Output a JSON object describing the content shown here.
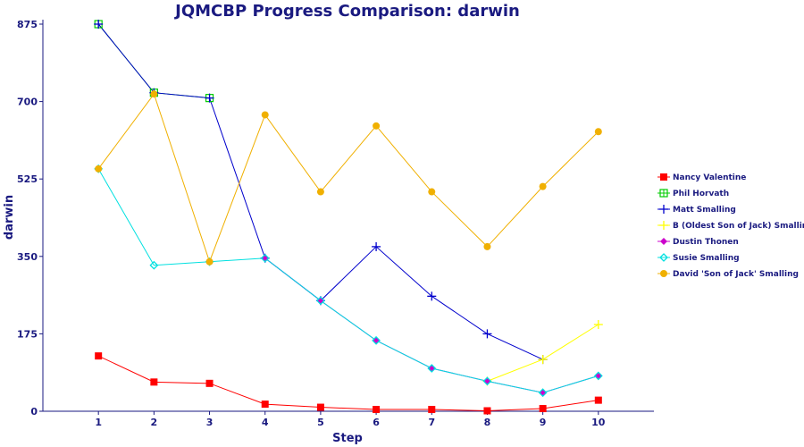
{
  "chart_data": {
    "type": "line",
    "title": "JQMCBP Progress Comparison: darwin",
    "xlabel": "Step",
    "ylabel": "darwin",
    "x": [
      1,
      2,
      3,
      4,
      5,
      6,
      7,
      8,
      9,
      10
    ],
    "x_ticks": [
      "1",
      "2",
      "3",
      "4",
      "5",
      "6",
      "7",
      "8",
      "9",
      "10"
    ],
    "xlim": [
      0,
      11
    ],
    "ylim": [
      0,
      875
    ],
    "y_ticks": [
      0,
      175,
      350,
      525,
      700,
      875
    ],
    "y_tick_labels": [
      "0",
      "175",
      "350",
      "525",
      "700",
      "875"
    ],
    "grid": false,
    "legend": "right",
    "series": [
      {
        "name": "Nancy Valentine",
        "color": "#ff0000",
        "marker": "filled-square",
        "values": [
          125,
          66,
          63,
          16,
          9,
          4,
          4,
          1,
          6,
          25
        ]
      },
      {
        "name": "Phil Horvath",
        "color": "#00cc00",
        "marker": "open-square",
        "values": [
          875,
          720,
          708,
          null,
          null,
          null,
          null,
          null,
          null,
          null
        ]
      },
      {
        "name": "Matt Smalling",
        "color": "#0000cc",
        "marker": "plus",
        "values": [
          875,
          720,
          708,
          346,
          250,
          372,
          260,
          175,
          117,
          null
        ]
      },
      {
        "name": "B (Oldest Son of Jack) Smalling",
        "color": "#ffff00",
        "marker": "plus",
        "values": [
          null,
          null,
          null,
          null,
          null,
          null,
          null,
          68,
          117,
          196
        ]
      },
      {
        "name": "Dustin Thonen",
        "color": "#cc00cc",
        "marker": "diamond",
        "values": [
          null,
          null,
          null,
          346,
          250,
          160,
          97,
          68,
          42,
          80
        ]
      },
      {
        "name": "Susie Smalling",
        "color": "#00e0e0",
        "marker": "open-diamond",
        "values": [
          548,
          330,
          338,
          346,
          250,
          160,
          97,
          68,
          42,
          80
        ]
      },
      {
        "name": "David 'Son of Jack' Smalling",
        "color": "#f0b000",
        "marker": "circle",
        "values": [
          548,
          717,
          338,
          670,
          496,
          645,
          496,
          372,
          508,
          632
        ]
      }
    ]
  }
}
